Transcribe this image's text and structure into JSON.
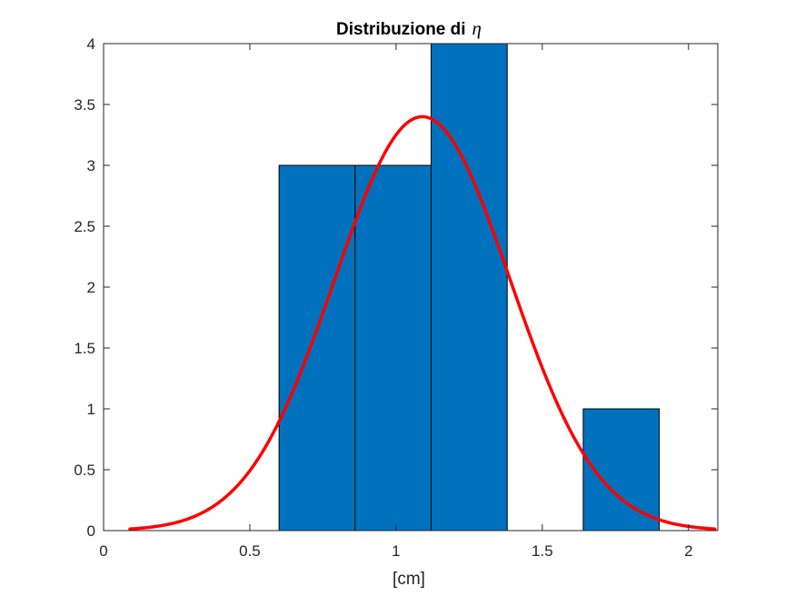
{
  "chart_data": {
    "type": "bar",
    "title": "Distribuzione di",
    "title_symbol": "η",
    "xlabel": "[cm]",
    "ylabel": "",
    "xlim": [
      0,
      2.1
    ],
    "ylim": [
      0,
      4
    ],
    "grid": false,
    "x_ticks": [
      0,
      0.5,
      1,
      1.5,
      2
    ],
    "x_tick_labels": [
      "0",
      "0.5",
      "1",
      "1.5",
      "2"
    ],
    "y_ticks": [
      0,
      0.5,
      1,
      1.5,
      2,
      2.5,
      3,
      3.5,
      4
    ],
    "y_tick_labels": [
      "0",
      "0.5",
      "1",
      "1.5",
      "2",
      "2.5",
      "3",
      "3.5",
      "4"
    ],
    "bins": [
      {
        "x_start": 0.6,
        "x_end": 0.86,
        "count": 3
      },
      {
        "x_start": 0.86,
        "x_end": 1.12,
        "count": 3
      },
      {
        "x_start": 1.12,
        "x_end": 1.38,
        "count": 4
      },
      {
        "x_start": 1.38,
        "x_end": 1.64,
        "count": 0
      },
      {
        "x_start": 1.64,
        "x_end": 1.9,
        "count": 1
      }
    ],
    "bar_color": "#0072BD",
    "fit_curve": {
      "type": "gaussian",
      "mean": 1.09,
      "std": 0.3,
      "peak": 3.4,
      "x_range": [
        0.09,
        2.09
      ],
      "color": "#FF0000"
    }
  }
}
